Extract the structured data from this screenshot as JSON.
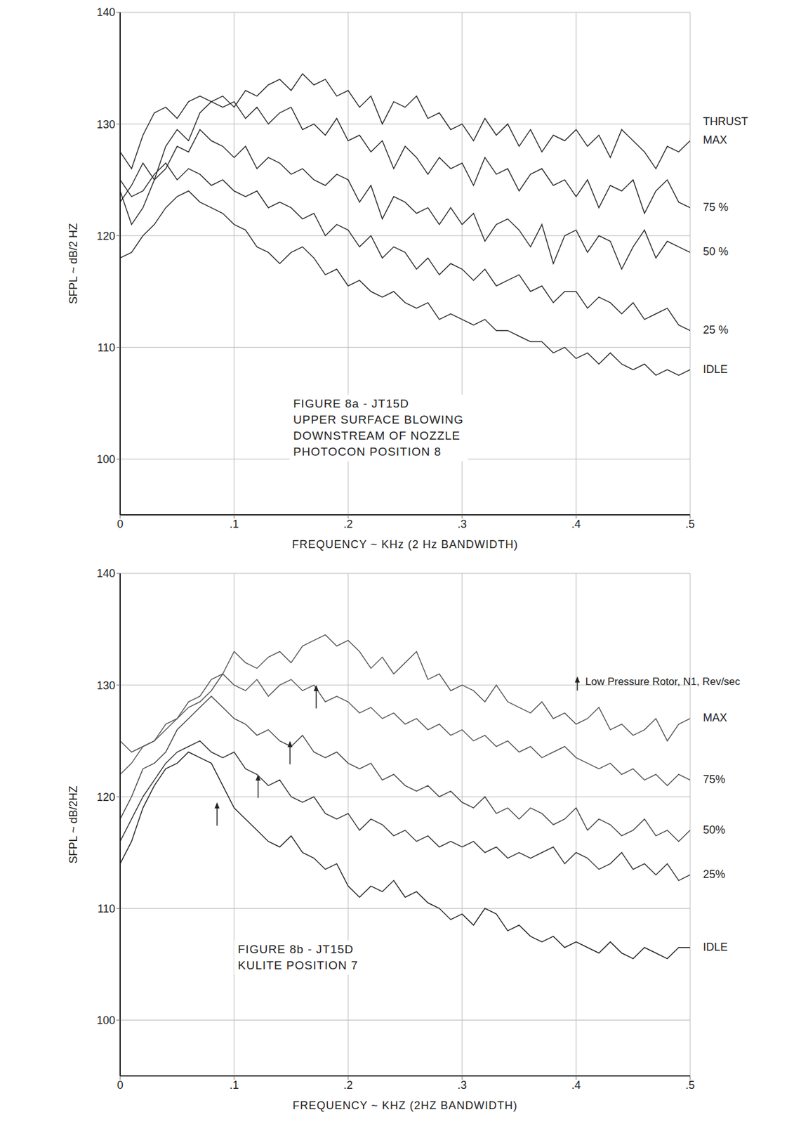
{
  "chart_data": [
    {
      "type": "line",
      "title": "FIGURE 8a - JT15D",
      "subtitle": [
        "UPPER SURFACE BLOWING",
        "DOWNSTREAM OF NOZZLE",
        "PHOTOCON POSITION 8"
      ],
      "x_label": "FREQUENCY ~ KHz (2 Hz BANDWIDTH)",
      "y_label": "SFPL ~ dB/2 HZ",
      "xlim": [
        0,
        0.5
      ],
      "xticks": [
        0,
        {
          "value": 0.1,
          "label": ".1"
        },
        {
          "value": 0.2,
          "label": ".2"
        },
        {
          "value": 0.3,
          "label": ".3"
        },
        {
          "value": 0.4,
          "label": ".4"
        },
        {
          "value": 0.5,
          "label": ".5"
        }
      ],
      "ylim": [
        95,
        140
      ],
      "yticks": [
        100,
        110,
        120,
        130,
        140
      ],
      "grid": true,
      "legend": "right",
      "legend_title": "THRUST",
      "x": [
        0,
        0.01,
        0.02,
        0.03,
        0.04,
        0.05,
        0.06,
        0.07,
        0.08,
        0.09,
        0.1,
        0.11,
        0.12,
        0.13,
        0.14,
        0.15,
        0.16,
        0.17,
        0.18,
        0.19,
        0.2,
        0.21,
        0.22,
        0.23,
        0.24,
        0.25,
        0.26,
        0.27,
        0.28,
        0.29,
        0.3,
        0.31,
        0.32,
        0.33,
        0.34,
        0.35,
        0.36,
        0.37,
        0.38,
        0.39,
        0.4,
        0.41,
        0.42,
        0.43,
        0.44,
        0.45,
        0.46,
        0.47,
        0.48,
        0.49,
        0.5
      ],
      "series": [
        {
          "name": "MAX",
          "color": "#2a2a2a",
          "values": [
            127.5,
            126,
            129,
            131,
            131.5,
            130.5,
            132,
            132.5,
            132,
            132.5,
            131.5,
            133,
            132.5,
            133.5,
            134,
            133,
            134.5,
            133.5,
            134,
            132.5,
            133,
            131.5,
            132.5,
            130,
            132,
            131.5,
            132.5,
            130.5,
            131,
            129.5,
            130,
            128.5,
            130.5,
            129,
            130,
            128,
            129.5,
            127.5,
            129,
            128.5,
            129.5,
            128,
            129,
            127,
            129.5,
            128.5,
            127.5,
            126,
            128,
            127.5,
            128.5
          ]
        },
        {
          "name": "75 %",
          "color": "#2a2a2a",
          "values": [
            123,
            124.5,
            126.5,
            125,
            128,
            129.5,
            128.5,
            131,
            132,
            131.5,
            132,
            130.5,
            131.5,
            130,
            131,
            131.5,
            129.5,
            130,
            129,
            130.5,
            128.5,
            129,
            127.5,
            128.5,
            126,
            128,
            127,
            125.5,
            127,
            126,
            126.5,
            124.5,
            127,
            125.5,
            126,
            124,
            125.5,
            126,
            124.5,
            125,
            123.5,
            125,
            122.5,
            124.5,
            124,
            125,
            122,
            124,
            125,
            123,
            122.5
          ]
        },
        {
          "name": "50 %",
          "color": "#2a2a2a",
          "values": [
            124,
            121,
            122.5,
            125,
            126,
            128,
            127.5,
            129.5,
            128.5,
            128,
            127,
            128,
            126,
            127,
            126.5,
            125.5,
            126,
            125,
            124.5,
            125.5,
            125,
            123,
            124.5,
            121.5,
            123.5,
            123,
            122,
            122.5,
            121,
            122.5,
            121,
            122,
            119.5,
            121,
            121.5,
            120.5,
            119,
            121,
            117.5,
            120,
            120.5,
            118.5,
            120,
            119.5,
            117,
            119,
            120.5,
            118,
            119.5,
            119,
            118.5
          ]
        },
        {
          "name": "25 %",
          "color": "#2a2a2a",
          "values": [
            125,
            123.5,
            124,
            125.5,
            126.5,
            125,
            126,
            125.5,
            124.5,
            125,
            124,
            123.5,
            124,
            122.5,
            123,
            122.5,
            121.5,
            122,
            120,
            121,
            120.5,
            119,
            120,
            118,
            119,
            118.5,
            117,
            118,
            116.5,
            117.5,
            117,
            116,
            117,
            115.5,
            116,
            116.5,
            115,
            115.5,
            114,
            115,
            115,
            113.5,
            114.5,
            114,
            113,
            114,
            112.5,
            113,
            113.5,
            112,
            111.5
          ]
        },
        {
          "name": "IDLE",
          "color": "#2a2a2a",
          "values": [
            118,
            118.5,
            120,
            121,
            122.5,
            123.5,
            124,
            123,
            122.5,
            122,
            121,
            120.5,
            119,
            118.5,
            117.5,
            118.5,
            119,
            118,
            116.5,
            117,
            115.5,
            116,
            115,
            114.5,
            115,
            114,
            113.5,
            114,
            112.5,
            113,
            112.5,
            112,
            112.5,
            111.5,
            111.5,
            111,
            110.5,
            110.5,
            109.5,
            110,
            109,
            109.5,
            108.5,
            109.5,
            108.5,
            108,
            108.5,
            107.5,
            108,
            107.5,
            108
          ]
        }
      ]
    },
    {
      "type": "line",
      "title": "FIGURE 8b - JT15D",
      "subtitle": [
        "KULITE POSITION 7"
      ],
      "x_label": "FREQUENCY ~ KHZ (2HZ BANDWIDTH)",
      "y_label": "SFPL ~ dB/2HZ",
      "xlim": [
        0,
        0.5
      ],
      "xticks": [
        0,
        {
          "value": 0.1,
          "label": ".1"
        },
        {
          "value": 0.2,
          "label": ".2"
        },
        {
          "value": 0.3,
          "label": ".3"
        },
        {
          "value": 0.4,
          "label": ".4"
        },
        {
          "value": 0.5,
          "label": ".5"
        }
      ],
      "ylim": [
        95,
        140
      ],
      "yticks": [
        100,
        110,
        120,
        130,
        140
      ],
      "grid": true,
      "legend": "right",
      "annotation": {
        "text": "Low Pressure Rotor, N1, Rev/sec",
        "arrows": [
          {
            "x": 0.085,
            "y": 119.5
          },
          {
            "x": 0.121,
            "y": 122
          },
          {
            "x": 0.149,
            "y": 125
          },
          {
            "x": 0.172,
            "y": 130
          }
        ]
      },
      "x": [
        0,
        0.01,
        0.02,
        0.03,
        0.04,
        0.05,
        0.06,
        0.07,
        0.08,
        0.09,
        0.1,
        0.11,
        0.12,
        0.13,
        0.14,
        0.15,
        0.16,
        0.17,
        0.18,
        0.19,
        0.2,
        0.21,
        0.22,
        0.23,
        0.24,
        0.25,
        0.26,
        0.27,
        0.28,
        0.29,
        0.3,
        0.31,
        0.32,
        0.33,
        0.34,
        0.35,
        0.36,
        0.37,
        0.38,
        0.39,
        0.4,
        0.41,
        0.42,
        0.43,
        0.44,
        0.45,
        0.46,
        0.47,
        0.48,
        0.49,
        0.5
      ],
      "series": [
        {
          "name": "MAX",
          "color": "#555555",
          "values": [
            125,
            124,
            124.5,
            125,
            126.5,
            127,
            128.5,
            129,
            130.5,
            131,
            133,
            132,
            131.5,
            132.5,
            133,
            132,
            133.5,
            134,
            134.5,
            133.5,
            134,
            133,
            131.5,
            132.5,
            131,
            132,
            133,
            130.5,
            131,
            129.5,
            130,
            129.5,
            128.5,
            130,
            128.5,
            128,
            127.5,
            128.5,
            127,
            127.5,
            126.5,
            127,
            128,
            126,
            126.5,
            125.5,
            126,
            127,
            125,
            126.5,
            127
          ]
        },
        {
          "name": "75%",
          "color": "#555555",
          "values": [
            122,
            123,
            124.5,
            125,
            126,
            127,
            128,
            128.5,
            129.5,
            131,
            130,
            129.5,
            130.5,
            129,
            130,
            130.5,
            129.5,
            130,
            128.5,
            129,
            128.5,
            127.5,
            128,
            127,
            127.5,
            126.5,
            127,
            126,
            126.5,
            125.5,
            126,
            125,
            125.5,
            124.5,
            125,
            124,
            124.5,
            123.5,
            124,
            124.5,
            123.5,
            123,
            122.5,
            123,
            122,
            122.5,
            121.5,
            122,
            121,
            122,
            121.5
          ]
        },
        {
          "name": "50%",
          "color": "#444444",
          "values": [
            118,
            120,
            122.5,
            123,
            124,
            126,
            127,
            128,
            129,
            128,
            127,
            126.5,
            125.5,
            126,
            125,
            124.5,
            125.5,
            124,
            123.5,
            124,
            123,
            122.5,
            123,
            121.5,
            122,
            121,
            120.5,
            121,
            120,
            120.5,
            119.5,
            119,
            120,
            118.5,
            119,
            118,
            119,
            118.5,
            117.5,
            118,
            119,
            117,
            118,
            117.5,
            116.5,
            117,
            118,
            116.5,
            117,
            116,
            117
          ]
        },
        {
          "name": "25%",
          "color": "#333333",
          "values": [
            116,
            118,
            120,
            121.5,
            123,
            124,
            124.5,
            125,
            124,
            123.5,
            124,
            122.5,
            122,
            121,
            121.5,
            120,
            119.5,
            120,
            118.5,
            118,
            118.5,
            117,
            118,
            117.5,
            116.5,
            117,
            116,
            116.5,
            115.5,
            116,
            115.5,
            116,
            115,
            115.5,
            114.5,
            115,
            114.5,
            115,
            115.5,
            114,
            115,
            114.5,
            113.5,
            114,
            115,
            113.5,
            114,
            113,
            114,
            112.5,
            113
          ]
        },
        {
          "name": "IDLE",
          "color": "#222222",
          "values": [
            114,
            116,
            119,
            121,
            122.5,
            123,
            124,
            123.5,
            123,
            121,
            119,
            118,
            117,
            116,
            115.5,
            116.5,
            115,
            114.5,
            113.5,
            114,
            112,
            111,
            112,
            111.5,
            112.5,
            111,
            111.5,
            110.5,
            110,
            109,
            109.5,
            108.5,
            110,
            109.5,
            108,
            108.5,
            107.5,
            107,
            107.5,
            106.5,
            107,
            106.5,
            106,
            107,
            106,
            105.5,
            106.5,
            106,
            105.5,
            106.5,
            106.5
          ]
        }
      ]
    }
  ]
}
